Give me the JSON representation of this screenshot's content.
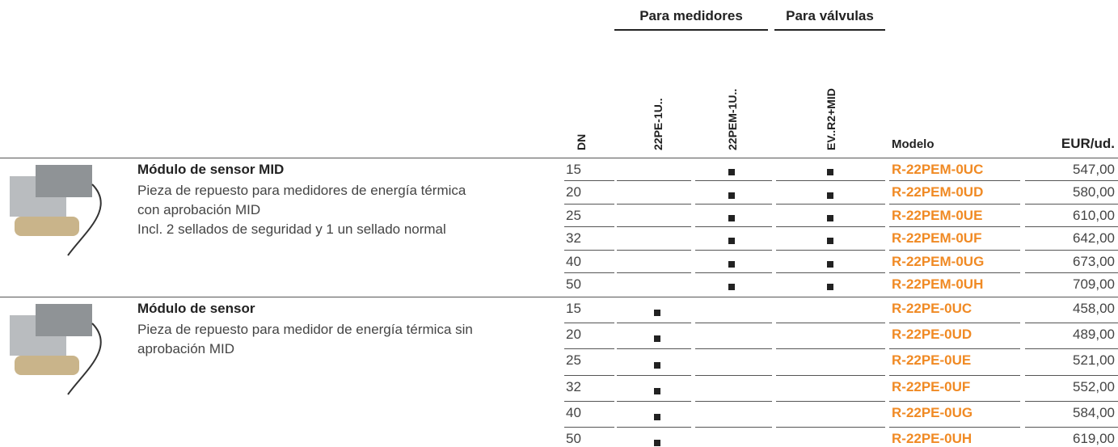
{
  "group_headers": [
    "Para medidores",
    "Para válvulas"
  ],
  "column_headers": [
    "DN",
    "22PE-1U..",
    "22PEM-1U..",
    "EV..R2+MID",
    "Modelo",
    "EUR/ud."
  ],
  "products": [
    {
      "title": "Módulo de sensor MID",
      "description": [
        "Pieza de repuesto para medidores de energía térmica",
        "con aprobación MID",
        "Incl. 2 sellados de seguridad y 1 un sellado normal"
      ],
      "rows": [
        {
          "dn": 15,
          "marks": [
            false,
            true,
            true
          ],
          "model": "R-22PEM-0UC",
          "price": "547,00"
        },
        {
          "dn": 20,
          "marks": [
            false,
            true,
            true
          ],
          "model": "R-22PEM-0UD",
          "price": "580,00"
        },
        {
          "dn": 25,
          "marks": [
            false,
            true,
            true
          ],
          "model": "R-22PEM-0UE",
          "price": "610,00"
        },
        {
          "dn": 32,
          "marks": [
            false,
            true,
            true
          ],
          "model": "R-22PEM-0UF",
          "price": "642,00"
        },
        {
          "dn": 40,
          "marks": [
            false,
            true,
            true
          ],
          "model": "R-22PEM-0UG",
          "price": "673,00"
        },
        {
          "dn": 50,
          "marks": [
            false,
            true,
            true
          ],
          "model": "R-22PEM-0UH",
          "price": "709,00"
        }
      ]
    },
    {
      "title": "Módulo de sensor",
      "description": [
        "Pieza de repuesto para medidor de energía térmica sin",
        "aprobación MID"
      ],
      "rows": [
        {
          "dn": 15,
          "marks": [
            true,
            false,
            false
          ],
          "model": "R-22PE-0UC",
          "price": "458,00"
        },
        {
          "dn": 20,
          "marks": [
            true,
            false,
            false
          ],
          "model": "R-22PE-0UD",
          "price": "489,00"
        },
        {
          "dn": 25,
          "marks": [
            true,
            false,
            false
          ],
          "model": "R-22PE-0UE",
          "price": "521,00"
        },
        {
          "dn": 32,
          "marks": [
            true,
            false,
            false
          ],
          "model": "R-22PE-0UF",
          "price": "552,00"
        },
        {
          "dn": 40,
          "marks": [
            true,
            false,
            false
          ],
          "model": "R-22PE-0UG",
          "price": "584,00"
        },
        {
          "dn": 50,
          "marks": [
            true,
            false,
            false
          ],
          "model": "R-22PE-0UH",
          "price": "619,00"
        }
      ]
    }
  ]
}
